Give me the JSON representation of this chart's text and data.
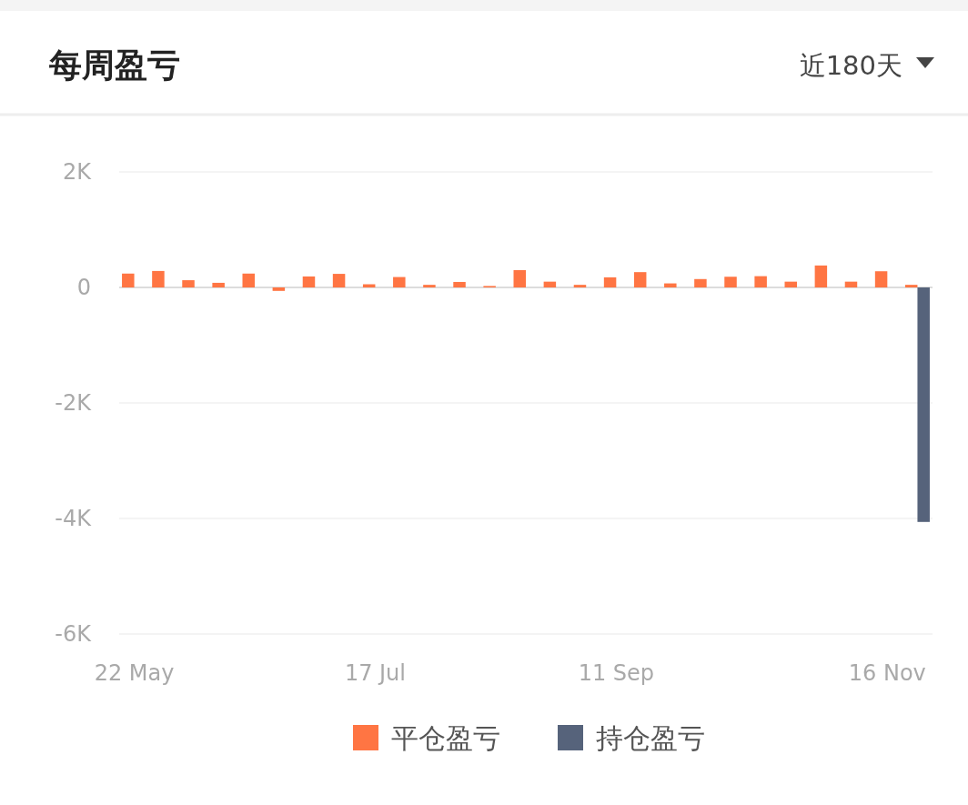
{
  "chart_data": {
    "type": "bar",
    "title": "每周盈亏",
    "annotations": [
      "近180天"
    ],
    "categories": [
      "22 May",
      null,
      null,
      null,
      null,
      null,
      null,
      null,
      "17 Jul",
      null,
      null,
      null,
      null,
      null,
      null,
      null,
      "11 Sep",
      null,
      null,
      null,
      null,
      null,
      null,
      null,
      null,
      "16 Nov",
      null
    ],
    "series": [
      {
        "name": "平仓盈亏",
        "color": "#ff7543",
        "values": [
          240,
          285,
          125,
          80,
          240,
          -60,
          190,
          235,
          55,
          180,
          45,
          95,
          25,
          300,
          100,
          45,
          175,
          265,
          70,
          145,
          185,
          195,
          100,
          380,
          100,
          280,
          45
        ]
      },
      {
        "name": "持仓盈亏",
        "color": "#56637b",
        "values": [
          null,
          null,
          null,
          null,
          null,
          null,
          null,
          null,
          null,
          null,
          null,
          null,
          null,
          null,
          null,
          null,
          null,
          null,
          null,
          null,
          null,
          null,
          null,
          null,
          null,
          null,
          -4060
        ]
      }
    ],
    "ylim": [
      -6000,
      2000
    ],
    "yticks": [
      {
        "value": 2000,
        "label": "2K"
      },
      0,
      {
        "value": -2000,
        "label": "-2K"
      },
      {
        "value": -4000,
        "label": "-4K"
      },
      {
        "value": -6000,
        "label": "-6K"
      }
    ],
    "grid": "y",
    "legend": "bottom"
  }
}
